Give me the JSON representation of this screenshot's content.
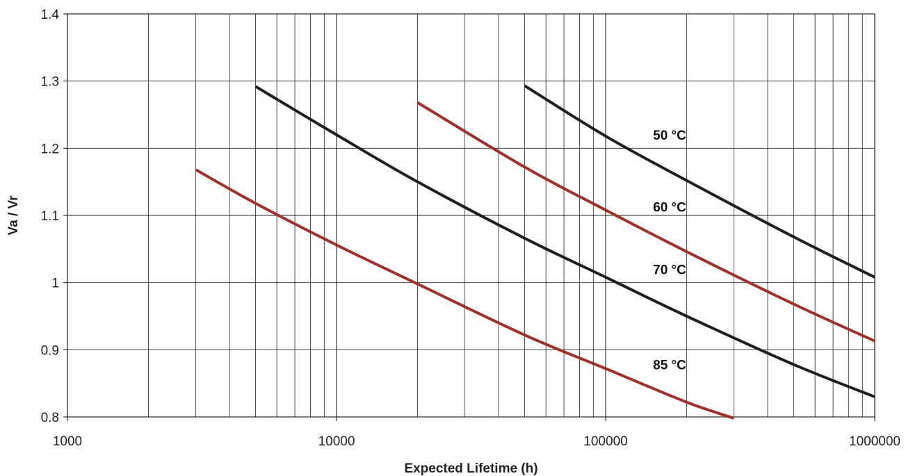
{
  "chart_data": {
    "type": "line",
    "title": "",
    "xlabel": "Expected Lifetime (h)",
    "ylabel": "Va / Vr",
    "x_scale": "log",
    "xlim": [
      1000,
      1000000
    ],
    "ylim": [
      0.8,
      1.4
    ],
    "x_ticks": [
      {
        "value": 1000,
        "label": "1000"
      },
      {
        "value": 10000,
        "label": "10000"
      },
      {
        "value": 100000,
        "label": "100000"
      },
      {
        "value": 1000000,
        "label": "1000000"
      }
    ],
    "y_ticks": [
      {
        "value": 0.8,
        "label": "0.8"
      },
      {
        "value": 0.9,
        "label": "0.9"
      },
      {
        "value": 1.0,
        "label": "1"
      },
      {
        "value": 1.1,
        "label": "1.1"
      },
      {
        "value": 1.2,
        "label": "1.2"
      },
      {
        "value": 1.3,
        "label": "1.3"
      },
      {
        "value": 1.4,
        "label": "1.4"
      }
    ],
    "grid": true,
    "series": [
      {
        "name": "50 °C",
        "color": "#1e1e1e",
        "label_at": {
          "x": 150000,
          "y": 1.22
        },
        "points": [
          [
            50000,
            1.293
          ],
          [
            100000,
            1.218
          ],
          [
            200000,
            1.152
          ],
          [
            500000,
            1.068
          ],
          [
            1000000,
            1.008
          ]
        ]
      },
      {
        "name": "60 °C",
        "color": "#a0302a",
        "label_at": {
          "x": 150000,
          "y": 1.113
        },
        "points": [
          [
            20000,
            1.268
          ],
          [
            50000,
            1.172
          ],
          [
            100000,
            1.108
          ],
          [
            200000,
            1.046
          ],
          [
            500000,
            0.968
          ],
          [
            1000000,
            0.913
          ]
        ]
      },
      {
        "name": "70 °C",
        "color": "#1e1e1e",
        "label_at": {
          "x": 150000,
          "y": 1.02
        },
        "points": [
          [
            5000,
            1.292
          ],
          [
            10000,
            1.22
          ],
          [
            20000,
            1.15
          ],
          [
            50000,
            1.066
          ],
          [
            100000,
            1.008
          ],
          [
            200000,
            0.95
          ],
          [
            500000,
            0.878
          ],
          [
            1000000,
            0.83
          ]
        ]
      },
      {
        "name": "85 °C",
        "color": "#a0302a",
        "label_at": {
          "x": 150000,
          "y": 0.878
        },
        "points": [
          [
            3000,
            1.168
          ],
          [
            5000,
            1.118
          ],
          [
            10000,
            1.056
          ],
          [
            20000,
            0.998
          ],
          [
            50000,
            0.922
          ],
          [
            100000,
            0.872
          ],
          [
            200000,
            0.822
          ],
          [
            300000,
            0.798
          ]
        ]
      }
    ]
  }
}
